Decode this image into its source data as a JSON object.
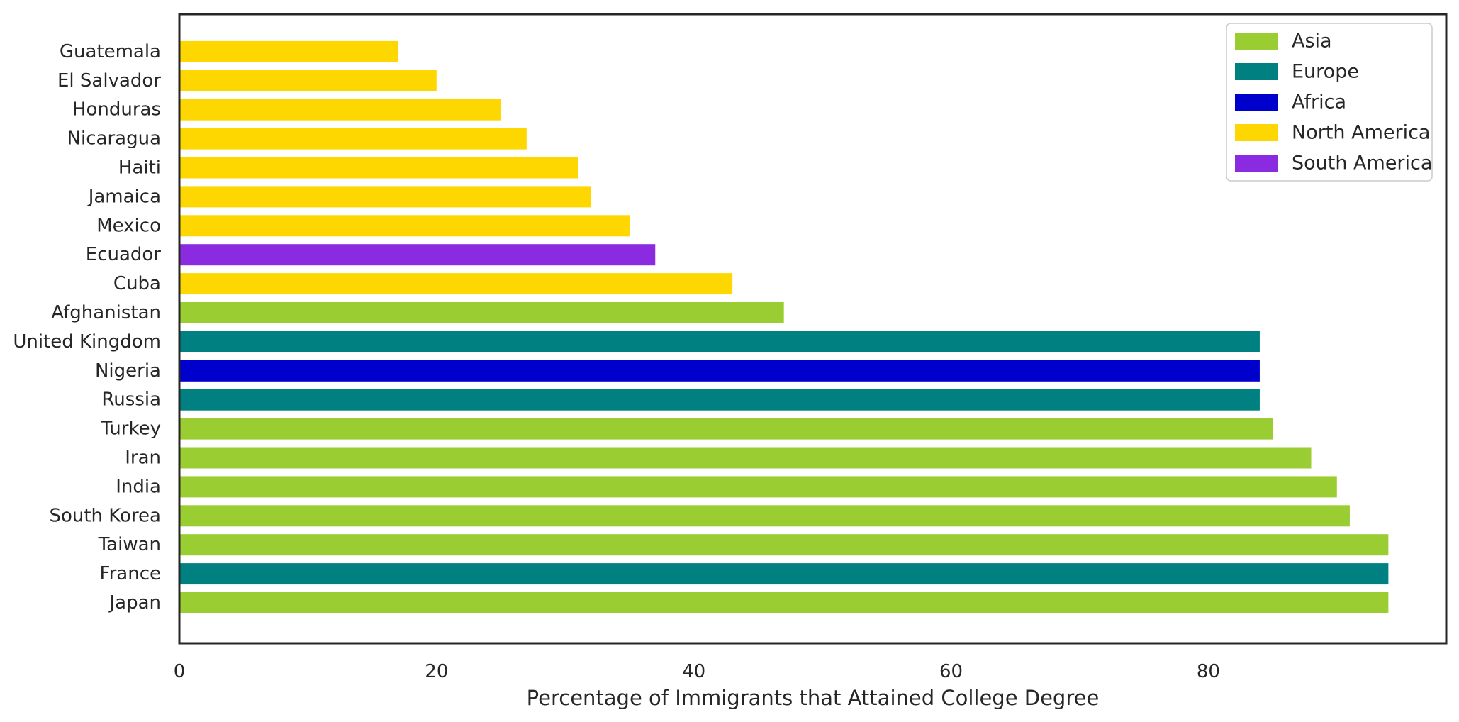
{
  "chart_data": {
    "type": "bar",
    "orientation": "horizontal",
    "title": "",
    "xlabel": "Percentage of Immigrants that Attained College Degree",
    "ylabel": "",
    "xlim": [
      0,
      98.5
    ],
    "xticks": [
      0,
      20,
      40,
      60,
      80
    ],
    "grid": false,
    "legend_position": "top-right",
    "bars": [
      {
        "category": "Japan",
        "value": 94,
        "group": "Asia"
      },
      {
        "category": "France",
        "value": 94,
        "group": "Europe"
      },
      {
        "category": "Taiwan",
        "value": 94,
        "group": "Asia"
      },
      {
        "category": "South Korea",
        "value": 91,
        "group": "Asia"
      },
      {
        "category": "India",
        "value": 90,
        "group": "Asia"
      },
      {
        "category": "Iran",
        "value": 88,
        "group": "Asia"
      },
      {
        "category": "Turkey",
        "value": 85,
        "group": "Asia"
      },
      {
        "category": "Russia",
        "value": 84,
        "group": "Europe"
      },
      {
        "category": "Nigeria",
        "value": 84,
        "group": "Africa"
      },
      {
        "category": "United Kingdom",
        "value": 84,
        "group": "Europe"
      },
      {
        "category": "Afghanistan",
        "value": 47,
        "group": "Asia"
      },
      {
        "category": "Cuba",
        "value": 43,
        "group": "North America"
      },
      {
        "category": "Ecuador",
        "value": 37,
        "group": "South America"
      },
      {
        "category": "Mexico",
        "value": 35,
        "group": "North America"
      },
      {
        "category": "Jamaica",
        "value": 32,
        "group": "North America"
      },
      {
        "category": "Haiti",
        "value": 31,
        "group": "North America"
      },
      {
        "category": "Nicaragua",
        "value": 27,
        "group": "North America"
      },
      {
        "category": "Honduras",
        "value": 25,
        "group": "North America"
      },
      {
        "category": "El Salvador",
        "value": 20,
        "group": "North America"
      },
      {
        "category": "Guatemala",
        "value": 17,
        "group": "North America"
      }
    ],
    "legend": [
      {
        "name": "Asia",
        "color": "#9acd32"
      },
      {
        "name": "Europe",
        "color": "#008080"
      },
      {
        "name": "Africa",
        "color": "#0000cd"
      },
      {
        "name": "North America",
        "color": "#ffd700"
      },
      {
        "name": "South America",
        "color": "#8a2be2"
      }
    ]
  }
}
